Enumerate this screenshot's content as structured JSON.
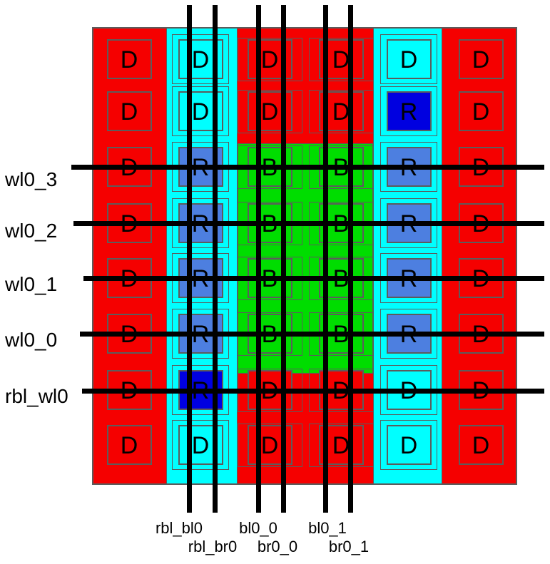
{
  "diagram": {
    "type": "replica-bitcell-array-layout",
    "cell_letters_legend": {
      "D": "dummy cell",
      "R": "replica cell",
      "B": "bitcell"
    }
  },
  "colors": {
    "dummy_red": "#f50000",
    "cyan": "#00ffff",
    "bitcell_green": "#00dd00",
    "replica_blue": "#4d7fe0",
    "replica_dark_blue": "#0000e0",
    "line_black": "#000000",
    "outline_gray": "#5c5c5c",
    "background": "#ffffff"
  },
  "wordlines": [
    {
      "name": "wl0_3"
    },
    {
      "name": "wl0_2"
    },
    {
      "name": "wl0_1"
    },
    {
      "name": "wl0_0"
    },
    {
      "name": "rbl_wl0"
    }
  ],
  "bitlines": [
    {
      "name": "rbl_bl0"
    },
    {
      "name": "rbl_br0"
    },
    {
      "name": "bl0_0"
    },
    {
      "name": "br0_0"
    },
    {
      "name": "bl0_1"
    },
    {
      "name": "br0_1"
    }
  ],
  "grid": {
    "rows": [
      {
        "cells": [
          {
            "letter": "D",
            "kind": "dummy_red"
          },
          {
            "letter": "D",
            "kind": "dummy_cyan"
          },
          {
            "letter": "D",
            "kind": "dummy_mid"
          },
          {
            "letter": "D",
            "kind": "dummy_mid"
          },
          {
            "letter": "D",
            "kind": "dummy_cyan"
          },
          {
            "letter": "D",
            "kind": "dummy_red"
          }
        ]
      },
      {
        "cells": [
          {
            "letter": "D",
            "kind": "dummy_red"
          },
          {
            "letter": "D",
            "kind": "dummy_cyan"
          },
          {
            "letter": "D",
            "kind": "dummy_mid"
          },
          {
            "letter": "D",
            "kind": "dummy_mid"
          },
          {
            "letter": "R",
            "kind": "replica_dark"
          },
          {
            "letter": "D",
            "kind": "dummy_red"
          }
        ]
      },
      {
        "cells": [
          {
            "letter": "D",
            "kind": "dummy_red"
          },
          {
            "letter": "R",
            "kind": "replica"
          },
          {
            "letter": "B",
            "kind": "bitcell"
          },
          {
            "letter": "B",
            "kind": "bitcell"
          },
          {
            "letter": "R",
            "kind": "replica"
          },
          {
            "letter": "D",
            "kind": "dummy_red"
          }
        ]
      },
      {
        "cells": [
          {
            "letter": "D",
            "kind": "dummy_red"
          },
          {
            "letter": "R",
            "kind": "replica"
          },
          {
            "letter": "B",
            "kind": "bitcell"
          },
          {
            "letter": "B",
            "kind": "bitcell"
          },
          {
            "letter": "R",
            "kind": "replica"
          },
          {
            "letter": "D",
            "kind": "dummy_red"
          }
        ]
      },
      {
        "cells": [
          {
            "letter": "D",
            "kind": "dummy_red"
          },
          {
            "letter": "R",
            "kind": "replica"
          },
          {
            "letter": "B",
            "kind": "bitcell"
          },
          {
            "letter": "B",
            "kind": "bitcell"
          },
          {
            "letter": "R",
            "kind": "replica"
          },
          {
            "letter": "D",
            "kind": "dummy_red"
          }
        ]
      },
      {
        "cells": [
          {
            "letter": "D",
            "kind": "dummy_red"
          },
          {
            "letter": "R",
            "kind": "replica"
          },
          {
            "letter": "B",
            "kind": "bitcell"
          },
          {
            "letter": "B",
            "kind": "bitcell"
          },
          {
            "letter": "R",
            "kind": "replica"
          },
          {
            "letter": "D",
            "kind": "dummy_red"
          }
        ]
      },
      {
        "cells": [
          {
            "letter": "D",
            "kind": "dummy_red"
          },
          {
            "letter": "R",
            "kind": "replica_dark"
          },
          {
            "letter": "D",
            "kind": "dummy_mid"
          },
          {
            "letter": "D",
            "kind": "dummy_mid"
          },
          {
            "letter": "D",
            "kind": "dummy_cyan"
          },
          {
            "letter": "D",
            "kind": "dummy_red"
          }
        ]
      },
      {
        "cells": [
          {
            "letter": "D",
            "kind": "dummy_red"
          },
          {
            "letter": "D",
            "kind": "dummy_cyan"
          },
          {
            "letter": "D",
            "kind": "dummy_mid"
          },
          {
            "letter": "D",
            "kind": "dummy_mid"
          },
          {
            "letter": "D",
            "kind": "dummy_cyan"
          },
          {
            "letter": "D",
            "kind": "dummy_red"
          }
        ]
      }
    ]
  }
}
